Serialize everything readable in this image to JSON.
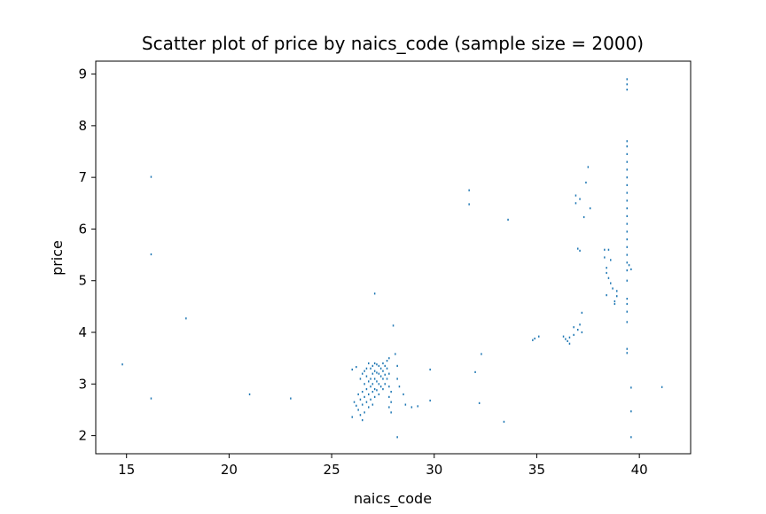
{
  "chart_data": {
    "type": "scatter",
    "title": "Scatter plot of price by naics_code (sample size = 2000)",
    "xlabel": "naics_code",
    "ylabel": "price",
    "xlim": [
      13.5,
      42.5
    ],
    "ylim": [
      1.65,
      9.25
    ],
    "xticks": [
      15,
      20,
      25,
      30,
      35,
      40
    ],
    "yticks": [
      2,
      3,
      4,
      5,
      6,
      7,
      8,
      9
    ],
    "grid": false,
    "legend": "none",
    "marker_color": "#1f77b4",
    "points": [
      [
        14.8,
        3.38
      ],
      [
        16.2,
        7.01
      ],
      [
        16.2,
        5.51
      ],
      [
        16.2,
        2.72
      ],
      [
        17.9,
        4.27
      ],
      [
        21.0,
        2.8
      ],
      [
        23.0,
        2.72
      ],
      [
        26.0,
        3.28
      ],
      [
        26.0,
        2.36
      ],
      [
        26.1,
        2.65
      ],
      [
        26.2,
        3.33
      ],
      [
        26.2,
        2.58
      ],
      [
        26.3,
        2.8
      ],
      [
        26.3,
        2.5
      ],
      [
        26.4,
        3.1
      ],
      [
        26.4,
        2.7
      ],
      [
        26.4,
        2.4
      ],
      [
        26.5,
        3.2
      ],
      [
        26.5,
        2.85
      ],
      [
        26.5,
        2.6
      ],
      [
        26.5,
        2.3
      ],
      [
        26.6,
        3.25
      ],
      [
        26.6,
        3.0
      ],
      [
        26.6,
        2.75
      ],
      [
        26.6,
        2.45
      ],
      [
        26.7,
        3.3
      ],
      [
        26.7,
        3.15
      ],
      [
        26.7,
        2.9
      ],
      [
        26.7,
        2.65
      ],
      [
        26.8,
        3.4
      ],
      [
        26.8,
        3.05
      ],
      [
        26.8,
        2.8
      ],
      [
        26.8,
        2.55
      ],
      [
        26.9,
        3.3
      ],
      [
        26.9,
        3.1
      ],
      [
        26.9,
        2.95
      ],
      [
        26.9,
        2.7
      ],
      [
        27.0,
        3.35
      ],
      [
        27.0,
        3.2
      ],
      [
        27.0,
        3.0
      ],
      [
        27.0,
        2.85
      ],
      [
        27.0,
        2.6
      ],
      [
        27.1,
        3.4
      ],
      [
        27.1,
        3.25
      ],
      [
        27.1,
        3.1
      ],
      [
        27.1,
        2.9
      ],
      [
        27.1,
        2.75
      ],
      [
        27.1,
        4.75
      ],
      [
        27.2,
        3.38
      ],
      [
        27.2,
        3.22
      ],
      [
        27.2,
        3.05
      ],
      [
        27.2,
        2.88
      ],
      [
        27.3,
        3.35
      ],
      [
        27.3,
        3.2
      ],
      [
        27.3,
        3.0
      ],
      [
        27.3,
        2.8
      ],
      [
        27.4,
        3.3
      ],
      [
        27.4,
        3.15
      ],
      [
        27.4,
        2.95
      ],
      [
        27.5,
        3.4
      ],
      [
        27.5,
        3.25
      ],
      [
        27.5,
        3.1
      ],
      [
        27.5,
        2.9
      ],
      [
        27.6,
        3.35
      ],
      [
        27.6,
        3.18
      ],
      [
        27.6,
        3.0
      ],
      [
        27.7,
        3.45
      ],
      [
        27.7,
        3.3
      ],
      [
        27.7,
        3.1
      ],
      [
        27.8,
        3.5
      ],
      [
        27.8,
        3.2
      ],
      [
        27.8,
        2.95
      ],
      [
        27.8,
        2.75
      ],
      [
        27.8,
        2.55
      ],
      [
        27.9,
        2.85
      ],
      [
        27.9,
        2.65
      ],
      [
        27.9,
        2.45
      ],
      [
        28.0,
        4.13
      ],
      [
        28.1,
        3.58
      ],
      [
        28.2,
        3.35
      ],
      [
        28.2,
        3.1
      ],
      [
        28.2,
        1.97
      ],
      [
        28.3,
        2.95
      ],
      [
        28.5,
        2.8
      ],
      [
        28.6,
        2.6
      ],
      [
        28.9,
        2.55
      ],
      [
        29.2,
        2.57
      ],
      [
        29.8,
        3.28
      ],
      [
        29.8,
        2.68
      ],
      [
        31.7,
        6.75
      ],
      [
        31.7,
        6.48
      ],
      [
        32.0,
        3.23
      ],
      [
        32.2,
        2.63
      ],
      [
        32.3,
        3.58
      ],
      [
        33.4,
        2.27
      ],
      [
        33.6,
        6.18
      ],
      [
        34.8,
        3.85
      ],
      [
        34.9,
        3.88
      ],
      [
        35.1,
        3.92
      ],
      [
        36.3,
        3.92
      ],
      [
        36.4,
        3.87
      ],
      [
        36.5,
        3.83
      ],
      [
        36.6,
        3.78
      ],
      [
        36.6,
        3.9
      ],
      [
        36.8,
        4.1
      ],
      [
        36.8,
        3.95
      ],
      [
        36.9,
        6.65
      ],
      [
        36.9,
        6.5
      ],
      [
        37.0,
        5.62
      ],
      [
        37.0,
        4.05
      ],
      [
        37.1,
        6.58
      ],
      [
        37.1,
        5.58
      ],
      [
        37.1,
        4.15
      ],
      [
        37.2,
        4.38
      ],
      [
        37.2,
        4.0
      ],
      [
        37.3,
        6.23
      ],
      [
        37.4,
        6.9
      ],
      [
        37.5,
        7.2
      ],
      [
        37.6,
        6.4
      ],
      [
        38.3,
        5.6
      ],
      [
        38.3,
        5.45
      ],
      [
        38.4,
        5.25
      ],
      [
        38.4,
        5.15
      ],
      [
        38.4,
        4.72
      ],
      [
        38.5,
        5.6
      ],
      [
        38.5,
        5.05
      ],
      [
        38.6,
        5.4
      ],
      [
        38.6,
        4.95
      ],
      [
        38.7,
        4.85
      ],
      [
        38.8,
        4.6
      ],
      [
        38.8,
        4.55
      ],
      [
        38.9,
        4.8
      ],
      [
        38.9,
        4.7
      ],
      [
        39.4,
        8.9
      ],
      [
        39.4,
        8.8
      ],
      [
        39.4,
        8.7
      ],
      [
        39.4,
        7.7
      ],
      [
        39.4,
        7.6
      ],
      [
        39.4,
        7.45
      ],
      [
        39.4,
        7.3
      ],
      [
        39.4,
        7.15
      ],
      [
        39.4,
        7.0
      ],
      [
        39.4,
        6.85
      ],
      [
        39.4,
        6.7
      ],
      [
        39.4,
        6.55
      ],
      [
        39.4,
        6.4
      ],
      [
        39.4,
        6.25
      ],
      [
        39.4,
        6.1
      ],
      [
        39.4,
        5.95
      ],
      [
        39.4,
        5.8
      ],
      [
        39.4,
        5.65
      ],
      [
        39.4,
        5.5
      ],
      [
        39.4,
        5.35
      ],
      [
        39.4,
        5.2
      ],
      [
        39.4,
        5.0
      ],
      [
        39.4,
        4.65
      ],
      [
        39.4,
        4.55
      ],
      [
        39.4,
        4.4
      ],
      [
        39.4,
        4.2
      ],
      [
        39.4,
        3.68
      ],
      [
        39.4,
        3.6
      ],
      [
        39.5,
        5.3
      ],
      [
        39.6,
        5.22
      ],
      [
        39.6,
        2.93
      ],
      [
        39.6,
        2.47
      ],
      [
        39.6,
        1.97
      ],
      [
        41.1,
        2.94
      ]
    ]
  }
}
